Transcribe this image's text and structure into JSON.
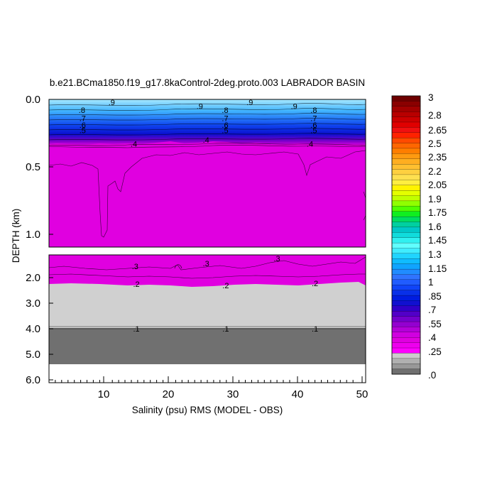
{
  "chart_data": {
    "type": "contour",
    "title": "b.e21.BCma1850.f19_g17.8kaControl-2deg.proto.003 LABRADOR BASIN",
    "xlabel": "Salinity (psu) RMS (MODEL - OBS)",
    "ylabel": "DEPTH (km)",
    "xlim": [
      1,
      51
    ],
    "x_ticks": [
      "10",
      "20",
      "30",
      "40",
      "50"
    ],
    "upper_panel": {
      "ylim": [
        0.0,
        1.1
      ],
      "y_ticks": [
        "0.0",
        "0.5",
        "1.0"
      ],
      "contour_labels": [
        {
          "text": ".9",
          "x": 10.9,
          "depth": 0.02
        },
        {
          "text": ".9",
          "x": 24.8,
          "depth": 0.05
        },
        {
          "text": ".9",
          "x": 32.7,
          "depth": 0.02
        },
        {
          "text": ".9",
          "x": 39.7,
          "depth": 0.05
        },
        {
          "text": ".8",
          "x": 6.2,
          "depth": 0.08
        },
        {
          "text": ".8",
          "x": 28.8,
          "depth": 0.08
        },
        {
          "text": ".8",
          "x": 42.8,
          "depth": 0.08
        },
        {
          "text": ".7",
          "x": 6.3,
          "depth": 0.14
        },
        {
          "text": ".7",
          "x": 28.8,
          "depth": 0.14
        },
        {
          "text": ".7",
          "x": 42.8,
          "depth": 0.14
        },
        {
          "text": ".6",
          "x": 6.3,
          "depth": 0.19
        },
        {
          "text": ".6",
          "x": 28.8,
          "depth": 0.19
        },
        {
          "text": ".6",
          "x": 42.8,
          "depth": 0.19
        },
        {
          "text": ".5",
          "x": 6.3,
          "depth": 0.23
        },
        {
          "text": ".5",
          "x": 28.8,
          "depth": 0.23
        },
        {
          "text": ".5",
          "x": 42.8,
          "depth": 0.23
        },
        {
          "text": ".4",
          "x": 14.4,
          "depth": 0.33
        },
        {
          "text": ".4",
          "x": 25.8,
          "depth": 0.3
        },
        {
          "text": ".4",
          "x": 42.2,
          "depth": 0.33
        }
      ]
    },
    "lower_panel": {
      "ylim": [
        1.1,
        6.0
      ],
      "y_ticks": [
        "2.0",
        "3.0",
        "4.0",
        "5.0",
        "6.0"
      ],
      "contour_labels": [
        {
          "text": ".3",
          "x": 14.6,
          "depth": 1.55
        },
        {
          "text": ".3",
          "x": 25.8,
          "depth": 1.45
        },
        {
          "text": ".3",
          "x": 37.0,
          "depth": 1.25
        },
        {
          "text": ".2",
          "x": 14.8,
          "depth": 2.25
        },
        {
          "text": ".2",
          "x": 28.9,
          "depth": 2.3
        },
        {
          "text": ".2",
          "x": 43.0,
          "depth": 2.22
        },
        {
          "text": ".1",
          "x": 14.8,
          "depth": 4.0
        },
        {
          "text": ".1",
          "x": 28.9,
          "depth": 4.0
        },
        {
          "text": ".1",
          "x": 43.0,
          "depth": 4.0
        }
      ]
    },
    "colorbar": {
      "labels": [
        "3",
        "2.8",
        "2.65",
        "2.5",
        "2.35",
        "2.2",
        "2.05",
        "1.9",
        "1.75",
        "1.6",
        "1.45",
        "1.3",
        "1.15",
        "1",
        ".85",
        ".7",
        ".55",
        ".4",
        ".25",
        ".0"
      ]
    },
    "colors": {
      "magenta": "#e000e0",
      "light_gray": "#d0d0d0",
      "dark_gray": "#707070"
    }
  }
}
